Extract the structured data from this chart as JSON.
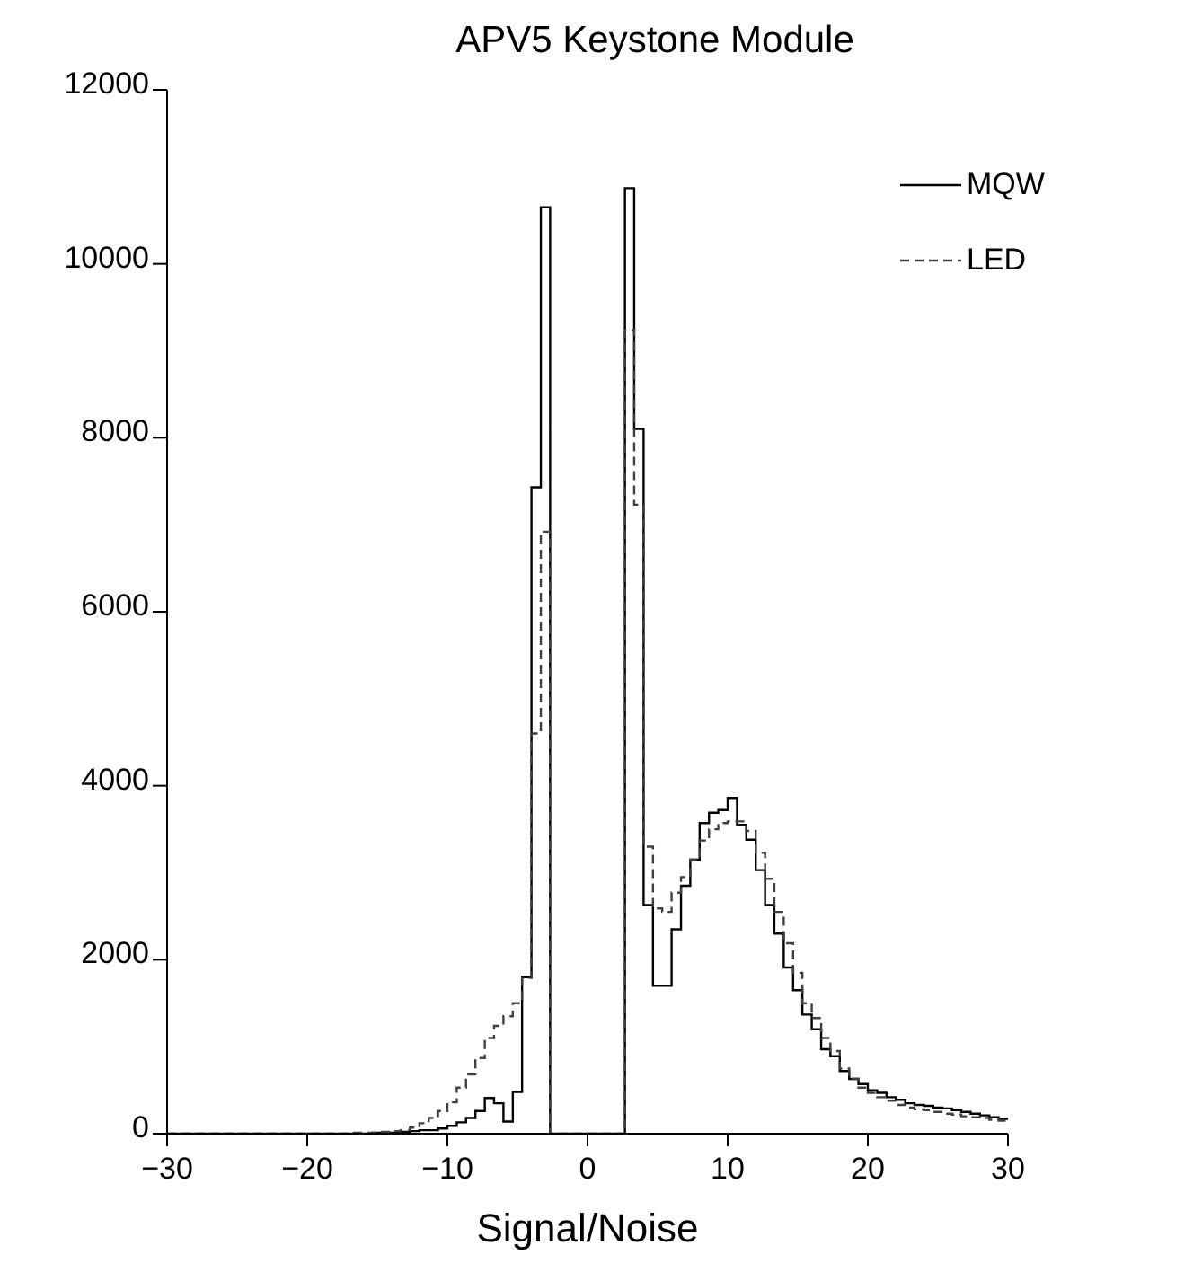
{
  "chart_data": {
    "type": "histogram",
    "title": "APV5 Keystone Module",
    "xlabel": "Signal/Noise",
    "bins": [
      -30,
      -29.33,
      -28.67,
      -28,
      -27.33,
      -26.67,
      -26,
      -25.33,
      -24.67,
      -24,
      -23.33,
      -22.67,
      -22,
      -21.33,
      -20.67,
      -20,
      -19.33,
      -18.67,
      -18,
      -17.33,
      -16.67,
      -16,
      -15.33,
      -14.67,
      -14,
      -13.33,
      -12.67,
      -12,
      -11.33,
      -10.67,
      -10,
      -9.33,
      -8.67,
      -8,
      -7.33,
      -6.67,
      -6,
      -5.33,
      -4.67,
      -4,
      -3.33,
      -2.67,
      -2,
      -1.33,
      -0.67,
      0,
      0.67,
      1.33,
      2,
      2.67,
      3.33,
      4,
      4.67,
      5.33,
      6,
      6.67,
      7.33,
      8,
      8.67,
      9.33,
      10,
      10.67,
      11.33,
      12,
      12.67,
      13.33,
      14,
      14.67,
      15.33,
      16,
      16.67,
      17.33,
      18,
      18.67,
      19.33,
      20,
      20.67,
      21.33,
      22,
      22.67,
      23.33,
      24,
      24.67,
      25.33,
      26,
      26.67,
      27.33,
      28,
      28.67,
      29.33,
      30
    ],
    "series": [
      {
        "name": "MQW",
        "color": "#000000",
        "line_style": "solid",
        "values": [
          0,
          0,
          0,
          0,
          0,
          0,
          0,
          0,
          0,
          0,
          0,
          0,
          0,
          0,
          0,
          0,
          0,
          0,
          0,
          0,
          0,
          0,
          10,
          10,
          10,
          20,
          30,
          40,
          40,
          60,
          90,
          130,
          180,
          260,
          410,
          350,
          140,
          480,
          1800,
          7430,
          10650,
          0,
          0,
          0,
          0,
          0,
          0,
          0,
          0,
          10870,
          8100,
          2630,
          1700,
          1700,
          2350,
          2850,
          3150,
          3570,
          3690,
          3720,
          3860,
          3550,
          3380,
          3030,
          2630,
          2300,
          1910,
          1650,
          1370,
          1200,
          970,
          890,
          720,
          630,
          570,
          500,
          470,
          420,
          390,
          350,
          330,
          320,
          300,
          290,
          270,
          250,
          230,
          210,
          190,
          170
        ]
      },
      {
        "name": "LED",
        "color": "#404040",
        "line_style": "dashed",
        "values": [
          0,
          0,
          0,
          0,
          0,
          0,
          0,
          0,
          0,
          0,
          0,
          0,
          0,
          0,
          0,
          0,
          0,
          0,
          0,
          0,
          10,
          10,
          10,
          20,
          30,
          40,
          70,
          120,
          180,
          260,
          360,
          530,
          680,
          870,
          1100,
          1240,
          1350,
          1500,
          1790,
          4600,
          6920,
          0,
          0,
          0,
          0,
          0,
          0,
          0,
          0,
          9240,
          7230,
          3300,
          2590,
          2550,
          2770,
          2950,
          3150,
          3370,
          3500,
          3570,
          3590,
          3590,
          3480,
          3230,
          2930,
          2550,
          2190,
          1850,
          1500,
          1330,
          1100,
          950,
          750,
          630,
          530,
          470,
          420,
          380,
          330,
          300,
          280,
          270,
          250,
          230,
          220,
          200,
          190,
          180,
          160,
          150
        ]
      }
    ],
    "xlim": [
      -30,
      30
    ],
    "xticks": [
      -30,
      -20,
      -10,
      0,
      10,
      20,
      30
    ],
    "ylim": [
      0,
      12000
    ],
    "yticks": [
      0,
      2000,
      4000,
      6000,
      8000,
      10000,
      12000
    ],
    "legend": "top right"
  }
}
